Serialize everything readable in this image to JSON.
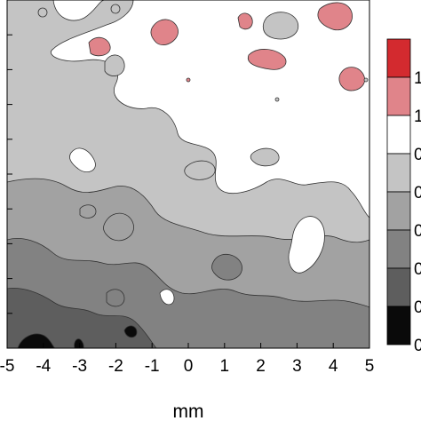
{
  "chart_data": {
    "type": "heatmap",
    "subtype": "filled-contour",
    "xlabel": "mm",
    "xlim": [
      -5,
      5
    ],
    "x_ticks": [
      -5,
      -4,
      -3,
      -2,
      -1,
      0,
      1,
      2,
      3,
      4,
      5
    ],
    "x_tick_labels": [
      "-5",
      "-4",
      "-3",
      "-2",
      "-1",
      "0",
      "1",
      "2",
      "3",
      "4",
      "5"
    ],
    "colorbar": {
      "levels": [
        {
          "color": "#d32a2f",
          "label": "1"
        },
        {
          "color": "#e0848a",
          "label": "1"
        },
        {
          "color": "#ffffff",
          "label": "1"
        },
        {
          "color": "#c4c4c4",
          "label": "0"
        },
        {
          "color": "#a2a2a2",
          "label": "0"
        },
        {
          "color": "#828282",
          "label": "0"
        },
        {
          "color": "#5e5e5e",
          "label": "0"
        },
        {
          "color": "#0a0a0a",
          "label": "0"
        }
      ]
    }
  }
}
